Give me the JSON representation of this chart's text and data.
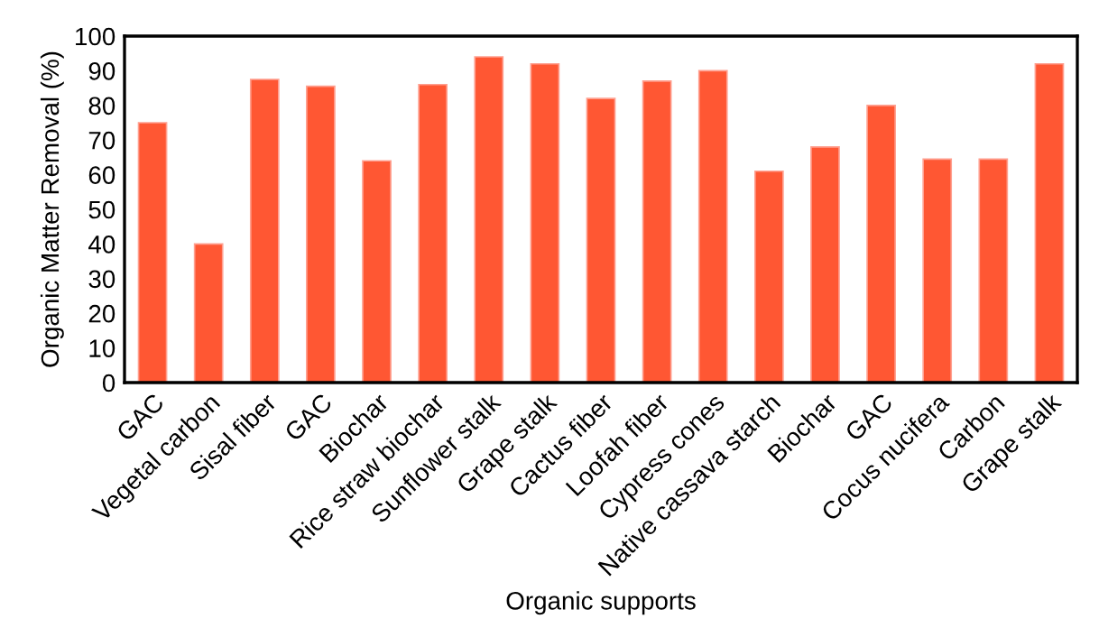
{
  "chart_data": {
    "type": "bar",
    "xlabel": "Organic supports",
    "ylabel": "Organic Matter Removal (%)",
    "categories": [
      "GAC",
      "Vegetal carbon",
      "Sisal fiber",
      "GAC",
      "Biochar",
      "Rice straw biochar",
      "Sunflower stalk",
      "Grape stalk",
      "Cactus fiber",
      "Loofah fiber",
      "Cypress cones",
      "Native cassava starch",
      "Biochar",
      "GAC",
      "Cocus nucifera",
      "Carbon",
      "Grape stalk"
    ],
    "values": [
      75,
      40,
      87.5,
      85.5,
      64,
      86,
      94,
      92,
      82,
      87,
      90,
      61,
      68,
      80,
      64.5,
      64.5,
      92
    ],
    "color": "#ff5733",
    "ylim": [
      0,
      100
    ],
    "yticks": [
      0,
      10,
      20,
      30,
      40,
      50,
      60,
      70,
      80,
      90,
      100
    ],
    "grid": false,
    "legend": false
  }
}
